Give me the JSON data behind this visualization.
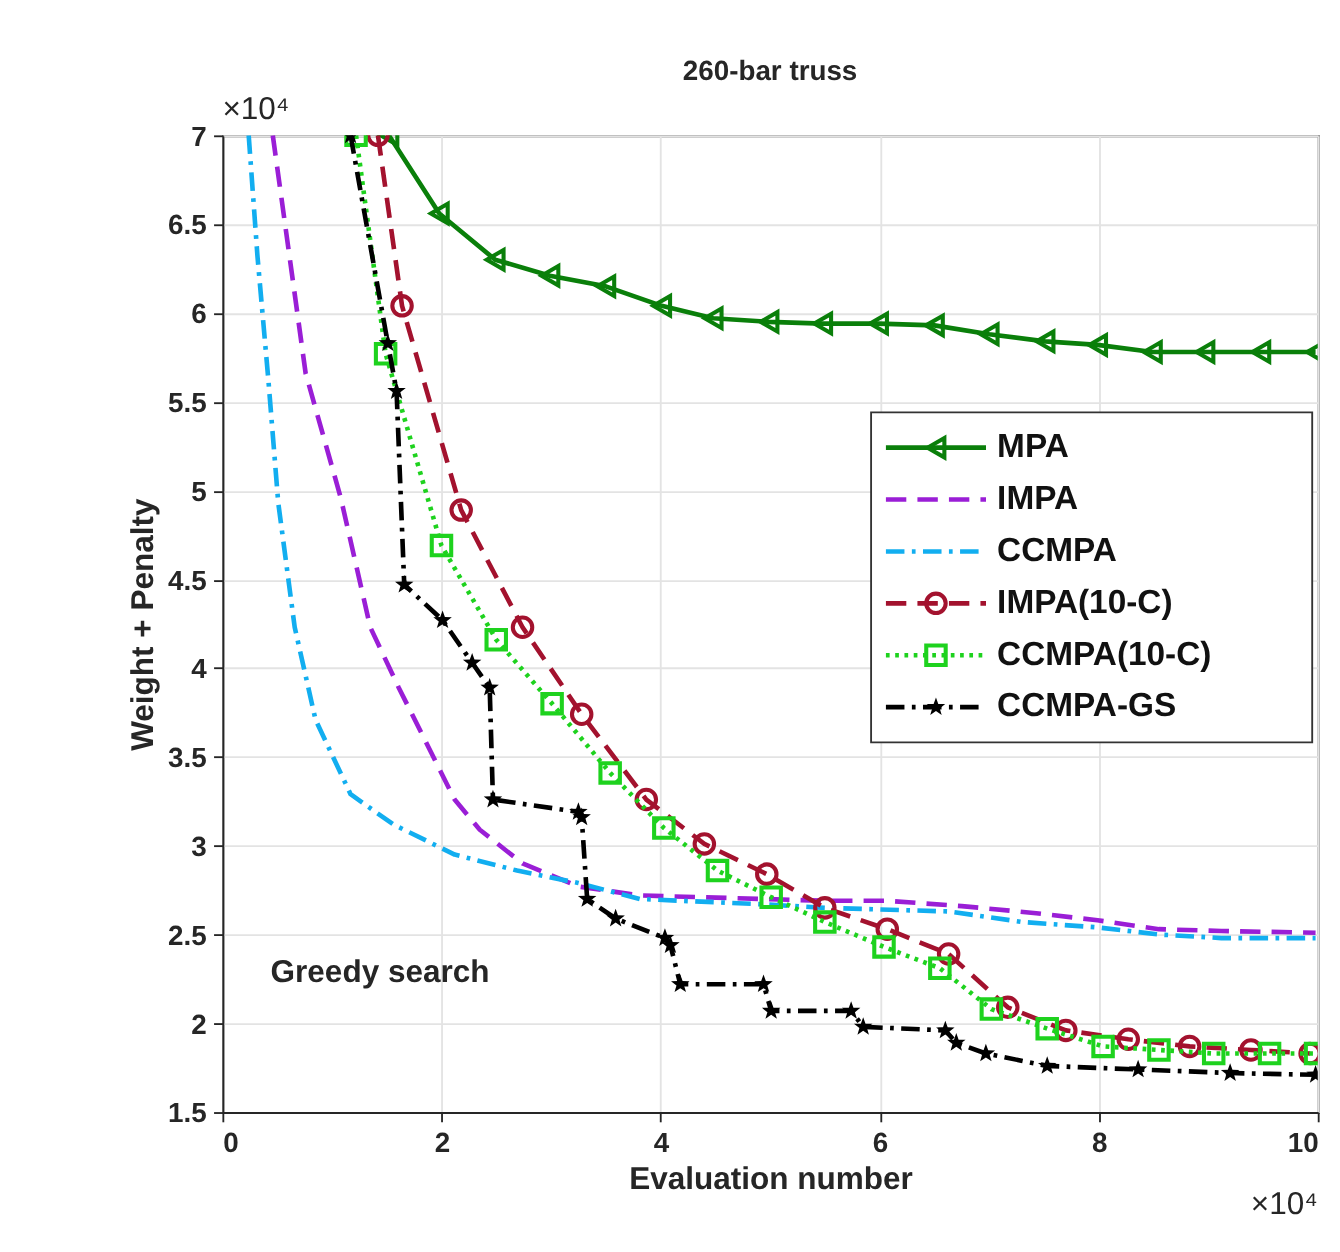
{
  "chart_data": {
    "type": "line",
    "title": "260-bar truss",
    "xlabel": "Evaluation number",
    "ylabel": "Weight + Penalty",
    "xlim": [
      0,
      10
    ],
    "ylim": [
      1.5,
      7
    ],
    "xticks": [
      0,
      2,
      4,
      6,
      8,
      10
    ],
    "yticks": [
      1.5,
      2,
      2.5,
      3,
      3.5,
      4,
      4.5,
      5,
      5.5,
      6,
      6.5,
      7
    ],
    "grid": true,
    "legend": "right",
    "annotations": [
      "×10⁴",
      "×10⁴",
      "Greedy search"
    ],
    "series": [
      {
        "name": "MPA",
        "color": "#0a7f0a",
        "marker": "triangle",
        "line_style": "solid",
        "x": [
          1.52,
          1.98,
          2.49,
          2.99,
          3.5,
          4.01,
          4.48,
          4.99,
          5.48,
          5.99,
          6.5,
          7.0,
          7.51,
          7.99,
          8.49,
          8.97,
          9.48,
          9.98
        ],
        "values": [
          7,
          6.56,
          6.3,
          6.21,
          6.15,
          6.04,
          5.97,
          5.95,
          5.94,
          5.94,
          5.93,
          5.88,
          5.84,
          5.82,
          5.78,
          5.78,
          5.78,
          5.78
        ]
      },
      {
        "name": "IMPA",
        "color": "#9a1ed6",
        "marker": "none",
        "line_style": "dashed",
        "x": [
          0.46,
          0.76,
          1.08,
          1.35,
          1.61,
          2.12,
          2.35,
          2.74,
          3.25,
          3.81,
          4.94,
          5.5,
          6.07,
          6.75,
          7.43,
          7.99,
          8.55,
          9.12,
          9.98
        ],
        "values": [
          7,
          5.66,
          4.96,
          4.23,
          3.89,
          3.26,
          3.09,
          2.9,
          2.77,
          2.72,
          2.7,
          2.69,
          2.69,
          2.66,
          2.62,
          2.58,
          2.53,
          2.52,
          2.51
        ]
      },
      {
        "name": "CCMPA",
        "color": "#12aef0",
        "marker": "none",
        "line_style": "dashdot",
        "x": [
          0.24,
          0.32,
          0.42,
          0.51,
          0.66,
          0.85,
          1.17,
          1.56,
          2.12,
          2.69,
          3.25,
          3.81,
          4.94,
          5.5,
          6.63,
          7.31,
          7.99,
          8.55,
          9.12,
          9.98
        ],
        "values": [
          7,
          6.32,
          5.62,
          4.93,
          4.23,
          3.71,
          3.29,
          3.12,
          2.95,
          2.86,
          2.79,
          2.7,
          2.67,
          2.65,
          2.63,
          2.57,
          2.54,
          2.5,
          2.48,
          2.48
        ]
      },
      {
        "name": "IMPA(10-C)",
        "color": "#a3122e",
        "marker": "circle",
        "line_style": "dashed",
        "x": [
          1.42,
          1.64,
          2.18,
          2.74,
          3.28,
          3.87,
          4.4,
          4.97,
          5.5,
          6.07,
          6.63,
          7.17,
          7.7,
          8.27,
          8.83,
          9.39,
          9.93
        ],
        "values": [
          7,
          6.04,
          4.89,
          4.23,
          3.74,
          3.26,
          3.01,
          2.84,
          2.65,
          2.53,
          2.39,
          2.09,
          1.96,
          1.91,
          1.87,
          1.85,
          1.83
        ]
      },
      {
        "name": "CCMPA(10-C)",
        "color": "#1ed21e",
        "marker": "square",
        "line_style": "dotted",
        "x": [
          1.22,
          1.49,
          2.0,
          2.5,
          3.01,
          3.54,
          4.03,
          4.52,
          5.01,
          5.5,
          6.04,
          6.55,
          7.02,
          7.53,
          8.04,
          8.55,
          9.05,
          9.56,
          9.98
        ],
        "values": [
          7,
          5.77,
          4.69,
          4.16,
          3.8,
          3.41,
          3.1,
          2.86,
          2.71,
          2.57,
          2.43,
          2.31,
          2.08,
          1.97,
          1.87,
          1.85,
          1.83,
          1.83,
          1.83
        ]
      },
      {
        "name": "CCMPA-GS",
        "color": "#000000",
        "marker": "star",
        "line_style": "dashdot",
        "x": [
          1.17,
          1.51,
          1.59,
          1.66,
          2.01,
          2.28,
          2.44,
          2.47,
          3.25,
          3.28,
          3.33,
          3.59,
          4.04,
          4.09,
          4.18,
          4.94,
          5.01,
          5.74,
          5.85,
          6.6,
          6.7,
          6.97,
          7.53,
          8.36,
          9.2,
          9.98
        ],
        "values": [
          7,
          5.83,
          5.56,
          4.47,
          4.27,
          4.03,
          3.89,
          3.26,
          3.19,
          3.16,
          2.7,
          2.59,
          2.48,
          2.44,
          2.22,
          2.22,
          2.07,
          2.07,
          1.98,
          1.96,
          1.89,
          1.83,
          1.76,
          1.74,
          1.72,
          1.71
        ]
      }
    ]
  }
}
